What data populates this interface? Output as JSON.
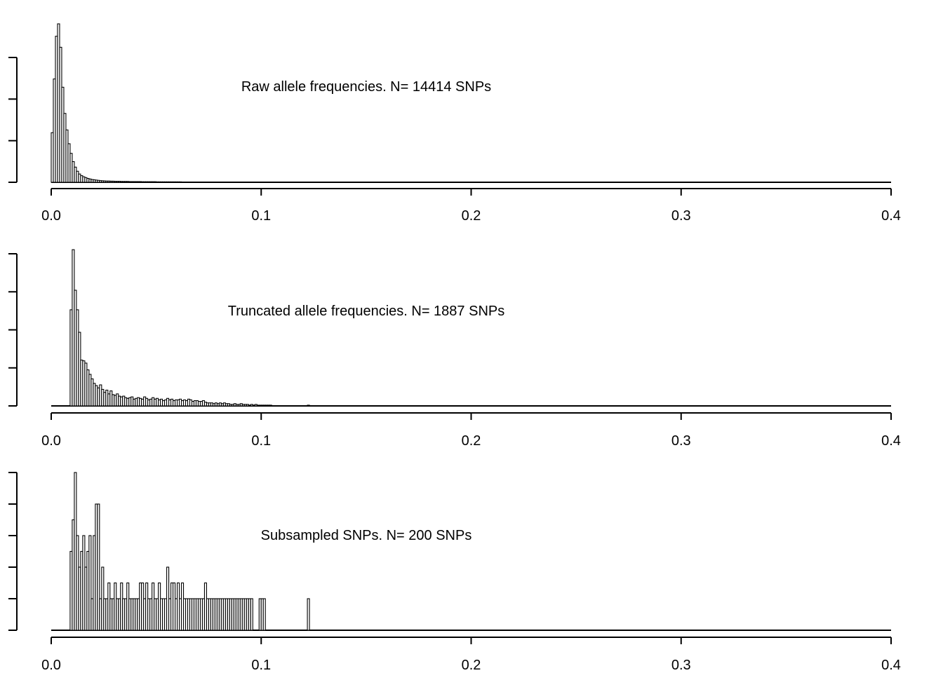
{
  "chart_data": [
    {
      "type": "bar",
      "title": "Raw allele frequencies. N= 14414 SNPs",
      "xlabel": "",
      "ylabel": "",
      "xlim": [
        0,
        0.4
      ],
      "ylim": [
        0,
        1150
      ],
      "x_ticks": [
        "0.0",
        "0.1",
        "0.2",
        "0.3",
        "0.4"
      ],
      "y_axis_ticks": 4,
      "y_tick_labels": [],
      "bin_width": 0.001,
      "x": [
        0.0005,
        0.0015,
        0.0025,
        0.0035,
        0.0045,
        0.0055,
        0.0065,
        0.0075,
        0.0085,
        0.0095,
        0.0105,
        0.0115,
        0.0125,
        0.0135,
        0.0145,
        0.0155,
        0.0165,
        0.0175,
        0.0185,
        0.0195,
        0.0205,
        0.0215,
        0.0225,
        0.0235,
        0.0245,
        0.0255,
        0.0265,
        0.0275,
        0.0285,
        0.0295,
        0.0305,
        0.0315,
        0.0325,
        0.0335,
        0.0345,
        0.0355,
        0.0365,
        0.0375,
        0.0385,
        0.0395,
        0.0405,
        0.0415,
        0.0425,
        0.0435,
        0.0445,
        0.0455,
        0.0465,
        0.0475,
        0.0485,
        0.0495,
        0.0505,
        0.0515,
        0.0525,
        0.0535,
        0.0545,
        0.0555,
        0.0565,
        0.0575,
        0.0585,
        0.0595,
        0.0605,
        0.0615,
        0.0625,
        0.0635,
        0.0645,
        0.0655,
        0.0665,
        0.0675,
        0.0685,
        0.0695,
        0.0705,
        0.0715,
        0.0725,
        0.0735,
        0.0745,
        0.0755,
        0.0765,
        0.0775,
        0.0785,
        0.0795,
        0.0805,
        0.0815,
        0.0825,
        0.0835,
        0.0845,
        0.0855,
        0.0865,
        0.0875,
        0.0885,
        0.0895,
        0.0905,
        0.0915,
        0.0925,
        0.0935,
        0.0945,
        0.0955,
        0.0965,
        0.0975,
        0.0985,
        0.0995
      ],
      "values": [
        360,
        750,
        1060,
        1150,
        980,
        690,
        500,
        380,
        280,
        210,
        150,
        110,
        80,
        60,
        48,
        40,
        34,
        28,
        24,
        20,
        18,
        16,
        14,
        12,
        11,
        10,
        9,
        9,
        8,
        8,
        7,
        7,
        7,
        6,
        6,
        6,
        6,
        5,
        5,
        5,
        5,
        5,
        5,
        4,
        4,
        4,
        4,
        4,
        4,
        4,
        3,
        3,
        3,
        3,
        3,
        3,
        3,
        3,
        3,
        3,
        3,
        3,
        2,
        2,
        2,
        2,
        2,
        2,
        2,
        2,
        2,
        2,
        2,
        2,
        2,
        2,
        2,
        2,
        2,
        1,
        1,
        1,
        1,
        1,
        1,
        1,
        1,
        1,
        1,
        1,
        1,
        1,
        1,
        1,
        1,
        1,
        1,
        1,
        1,
        1
      ]
    },
    {
      "type": "bar",
      "title": "Truncated allele frequencies. N= 1887 SNPs",
      "xlabel": "",
      "ylabel": "",
      "xlim": [
        0,
        0.4
      ],
      "ylim": [
        0,
        210
      ],
      "x_ticks": [
        "0.0",
        "0.1",
        "0.2",
        "0.3",
        "0.4"
      ],
      "y_axis_ticks": 5,
      "y_tick_labels": [],
      "bin_width": 0.001,
      "x": [
        0.0095,
        0.0105,
        0.0115,
        0.0125,
        0.0135,
        0.0145,
        0.0155,
        0.0165,
        0.0175,
        0.0185,
        0.0195,
        0.0205,
        0.0215,
        0.0225,
        0.0235,
        0.0245,
        0.0255,
        0.0265,
        0.0275,
        0.0285,
        0.0295,
        0.0305,
        0.0315,
        0.0325,
        0.0335,
        0.0345,
        0.0355,
        0.0365,
        0.0375,
        0.0385,
        0.0395,
        0.0405,
        0.0415,
        0.0425,
        0.0435,
        0.0445,
        0.0455,
        0.0465,
        0.0475,
        0.0485,
        0.0495,
        0.0505,
        0.0515,
        0.0525,
        0.0535,
        0.0545,
        0.0555,
        0.0565,
        0.0575,
        0.0585,
        0.0595,
        0.0605,
        0.0615,
        0.0625,
        0.0635,
        0.0645,
        0.0655,
        0.0665,
        0.0675,
        0.0685,
        0.0695,
        0.0705,
        0.0715,
        0.0725,
        0.0735,
        0.0745,
        0.0755,
        0.0765,
        0.0775,
        0.0785,
        0.0795,
        0.0805,
        0.0815,
        0.0825,
        0.0835,
        0.0845,
        0.0855,
        0.0865,
        0.0875,
        0.0885,
        0.0895,
        0.0905,
        0.0915,
        0.0925,
        0.0935,
        0.0945,
        0.0955,
        0.0965,
        0.0975,
        0.0985,
        0.0995,
        0.1005,
        0.1015,
        0.1025,
        0.1035,
        0.1045,
        0.1225
      ],
      "values": [
        128,
        208,
        154,
        128,
        98,
        61,
        60,
        57,
        48,
        42,
        36,
        30,
        27,
        24,
        28,
        22,
        18,
        21,
        16,
        20,
        15,
        14,
        16,
        13,
        12,
        13,
        11,
        10,
        11,
        12,
        9,
        10,
        11,
        10,
        9,
        12,
        10,
        8,
        9,
        11,
        9,
        10,
        8,
        9,
        7,
        8,
        10,
        8,
        9,
        7,
        8,
        8,
        9,
        7,
        8,
        7,
        9,
        8,
        6,
        7,
        7,
        6,
        6,
        7,
        5,
        4,
        4,
        4,
        3,
        4,
        3,
        4,
        3,
        4,
        3,
        3,
        2,
        2,
        3,
        2,
        2,
        3,
        2,
        2,
        2,
        1,
        2,
        1,
        2,
        1,
        1,
        1,
        1,
        1,
        1,
        1,
        1
      ]
    },
    {
      "type": "bar",
      "title": "Subsampled SNPs. N= 200 SNPs",
      "xlabel": "",
      "ylabel": "",
      "xlim": [
        0,
        0.4
      ],
      "ylim": [
        0,
        5
      ],
      "x_ticks": [
        "0.0",
        "0.1",
        "0.2",
        "0.3",
        "0.4"
      ],
      "y_axis_ticks": 6,
      "y_tick_labels": [],
      "bin_width": 0.001,
      "x": [
        0.0095,
        0.0105,
        0.0115,
        0.0125,
        0.0135,
        0.0145,
        0.0155,
        0.0165,
        0.0175,
        0.0185,
        0.0195,
        0.0205,
        0.0215,
        0.0225,
        0.0235,
        0.0245,
        0.0255,
        0.0265,
        0.0275,
        0.0285,
        0.0295,
        0.0305,
        0.0315,
        0.0325,
        0.0335,
        0.0345,
        0.0355,
        0.0365,
        0.0375,
        0.0385,
        0.0395,
        0.0405,
        0.0415,
        0.0425,
        0.0435,
        0.0445,
        0.0455,
        0.0465,
        0.0475,
        0.0485,
        0.0495,
        0.0505,
        0.0515,
        0.0525,
        0.0535,
        0.0545,
        0.0555,
        0.0565,
        0.0575,
        0.0585,
        0.0595,
        0.0605,
        0.0615,
        0.0625,
        0.0635,
        0.0645,
        0.0655,
        0.0665,
        0.0675,
        0.0685,
        0.0695,
        0.0705,
        0.0715,
        0.0725,
        0.0735,
        0.0745,
        0.0755,
        0.0765,
        0.0775,
        0.0785,
        0.0795,
        0.0805,
        0.0815,
        0.0825,
        0.0835,
        0.0845,
        0.0855,
        0.0865,
        0.0875,
        0.0885,
        0.0895,
        0.0905,
        0.0915,
        0.0925,
        0.0935,
        0.0945,
        0.0955,
        0.0995,
        0.1005,
        0.1015,
        0.1225
      ],
      "values": [
        2.5,
        3.5,
        5,
        3,
        2,
        2.5,
        3,
        2,
        2.5,
        3,
        1,
        3,
        4,
        4,
        1,
        2,
        1,
        1,
        1.5,
        1,
        1,
        1.5,
        1,
        1,
        1.5,
        1,
        1,
        1.5,
        1,
        1,
        1,
        1,
        1,
        1.5,
        1.5,
        1,
        1.5,
        1,
        1,
        1.5,
        1,
        1,
        1.5,
        1,
        1,
        1,
        2,
        1,
        1.5,
        1.5,
        1,
        1.5,
        1,
        1.5,
        1,
        1,
        1,
        1,
        1,
        1,
        1,
        1,
        1,
        1,
        1.5,
        1,
        1,
        1,
        1,
        1,
        1,
        1,
        1,
        1,
        1,
        1,
        1,
        1,
        1,
        1,
        1,
        1,
        1,
        1,
        1,
        1,
        1,
        1,
        1,
        1,
        1
      ]
    }
  ]
}
